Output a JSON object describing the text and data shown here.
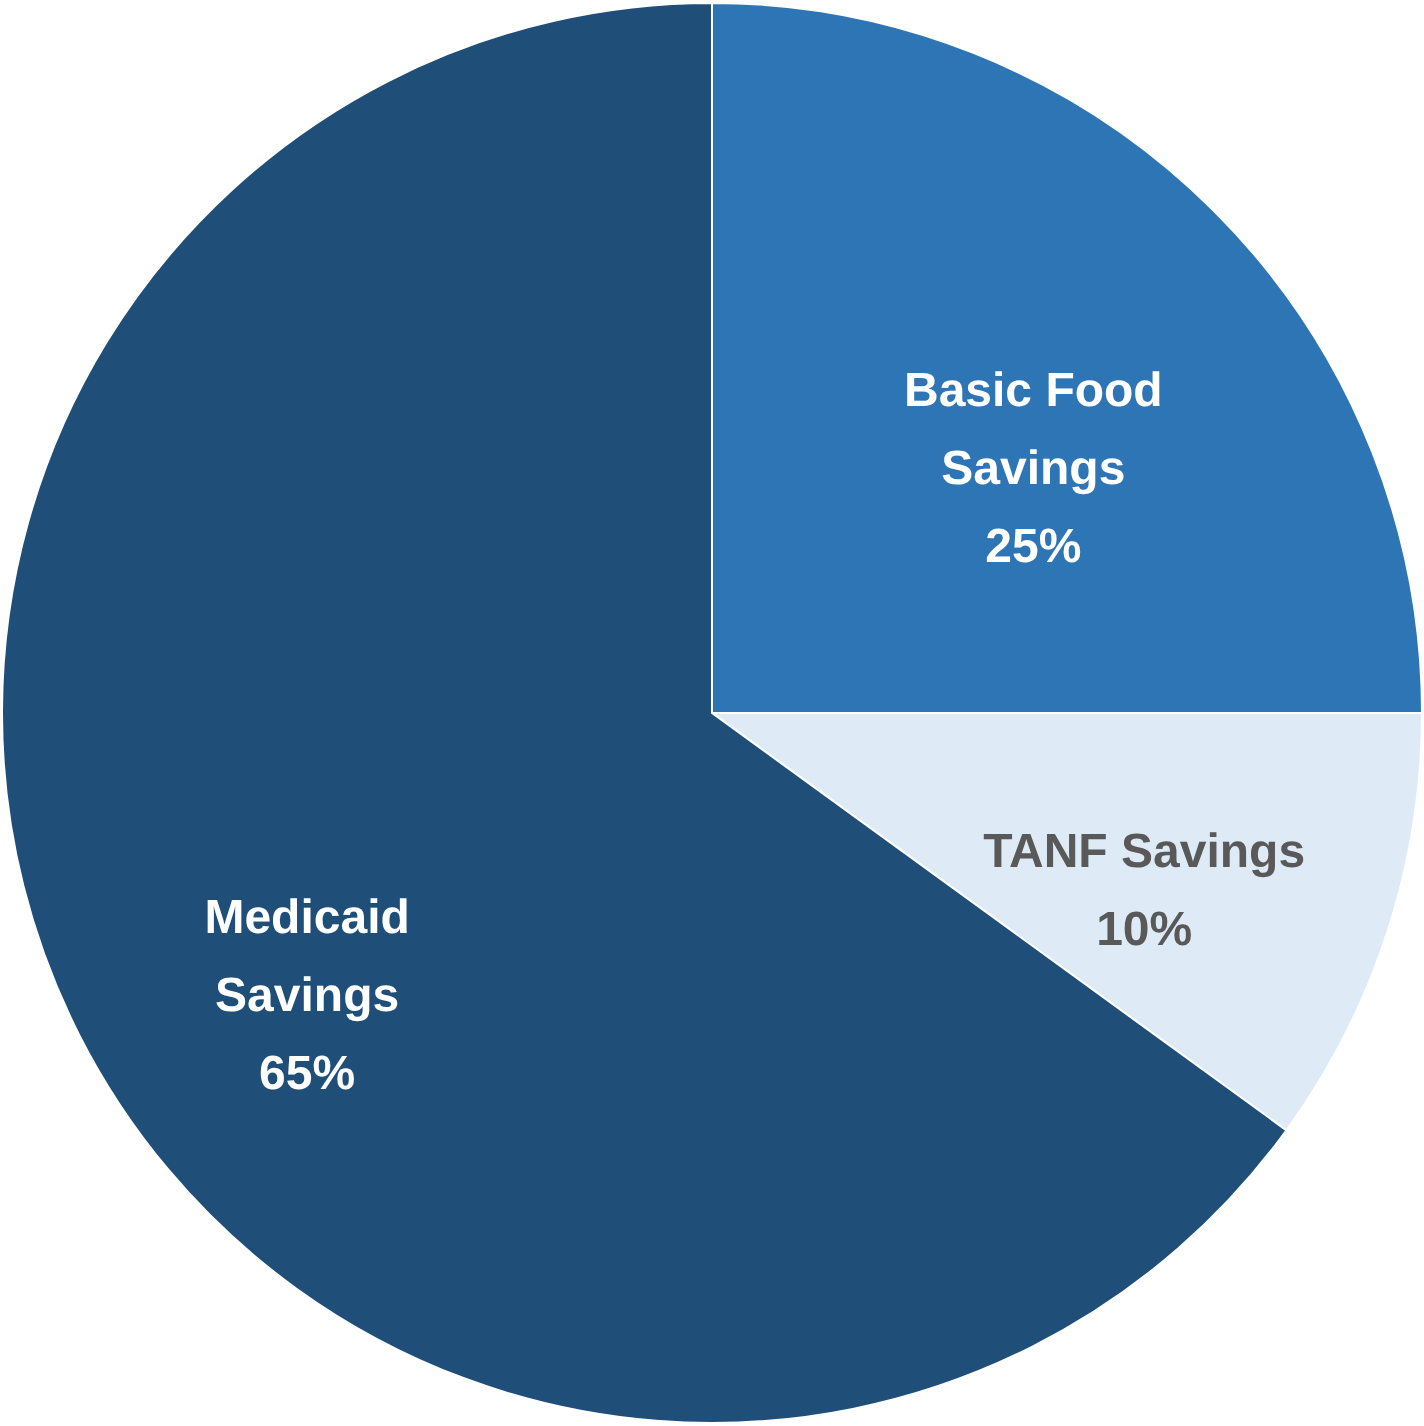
{
  "chart_data": {
    "type": "pie",
    "categories": [
      "Basic Food Savings",
      "TANF Savings",
      "Medicaid Savings"
    ],
    "values": [
      25,
      10,
      65
    ],
    "colors": [
      "#2e75b6",
      "#deebf7",
      "#1f4e79"
    ],
    "value_labels": [
      "25%",
      "10%",
      "65%"
    ]
  }
}
